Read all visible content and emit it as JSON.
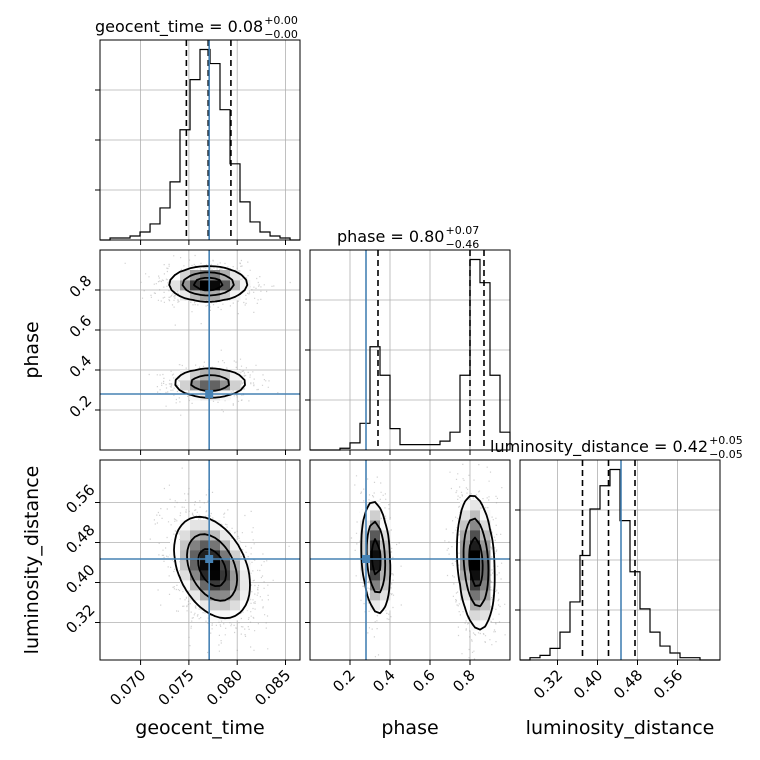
{
  "chart_data": {
    "type": "corner",
    "parameters": [
      "geocent_time",
      "phase",
      "luminosity_distance"
    ],
    "axis_labels": {
      "geocent_time": "geocent_time",
      "phase": "phase",
      "luminosity_distance": "luminosity_distance"
    },
    "ranges": {
      "geocent_time": [
        0.0658,
        0.0865
      ],
      "phase": [
        0.0,
        1.0
      ],
      "luminosity_distance": [
        0.245,
        0.645
      ]
    },
    "ticks": {
      "geocent_time": {
        "values": [
          0.07,
          0.075,
          0.08,
          0.085
        ],
        "labels": [
          "0.070",
          "0.075",
          "0.080",
          "0.085"
        ]
      },
      "phase": {
        "values": [
          0.2,
          0.4,
          0.6,
          0.8
        ],
        "labels": [
          "0.2",
          "0.4",
          "0.6",
          "0.8"
        ]
      },
      "luminosity_distance": {
        "values": [
          0.32,
          0.4,
          0.48,
          0.56
        ],
        "labels": [
          "0.32",
          "0.40",
          "0.48",
          "0.56"
        ]
      }
    },
    "injection": {
      "geocent_time": 0.0771,
      "phase": 0.28,
      "luminosity_distance": 0.447
    },
    "injection_color": "#4682b4",
    "grid": true,
    "titles": [
      {
        "param": "geocent_time",
        "prefix": "geocent_time = 0.08",
        "plus": "+0.00",
        "minus": "−0.00"
      },
      {
        "param": "phase",
        "prefix": "phase = 0.80",
        "plus": "+0.07",
        "minus": "−0.46"
      },
      {
        "param": "luminosity_distance",
        "prefix": "luminosity_distance = 0.42",
        "plus": "+0.05",
        "minus": "−0.05"
      }
    ],
    "histograms": {
      "geocent_time": {
        "quantiles": [
          0.07474,
          0.077,
          0.07935
        ],
        "edges": [
          0.0658,
          0.06684,
          0.06787,
          0.06891,
          0.06994,
          0.07098,
          0.07201,
          0.07305,
          0.07408,
          0.07512,
          0.07615,
          0.07719,
          0.07822,
          0.07926,
          0.08029,
          0.08133,
          0.08236,
          0.0834,
          0.08443,
          0.08547,
          0.0865
        ],
        "counts": [
          0,
          1,
          1,
          2,
          4,
          8,
          16,
          29,
          55,
          80,
          95,
          88,
          65,
          38,
          19,
          9,
          4,
          2,
          1,
          0
        ]
      },
      "phase": {
        "quantiles": [
          0.34,
          0.8,
          0.87
        ],
        "edges": [
          0.0,
          0.05,
          0.1,
          0.15,
          0.2,
          0.25,
          0.3,
          0.35,
          0.4,
          0.45,
          0.5,
          0.55,
          0.6,
          0.65,
          0.7,
          0.75,
          0.8,
          0.85,
          0.9,
          0.95,
          1.0
        ],
        "counts": [
          0,
          0,
          0,
          1,
          4,
          15,
          58,
          42,
          12,
          3,
          3,
          3,
          3,
          5,
          10,
          42,
          107,
          94,
          42,
          10
        ]
      },
      "luminosity_distance": {
        "quantiles": [
          0.37,
          0.422,
          0.475
        ],
        "edges": [
          0.245,
          0.265,
          0.285,
          0.305,
          0.325,
          0.345,
          0.365,
          0.385,
          0.405,
          0.425,
          0.445,
          0.465,
          0.485,
          0.505,
          0.525,
          0.545,
          0.565,
          0.585,
          0.605,
          0.625,
          0.645
        ],
        "counts": [
          0,
          1,
          2,
          5,
          12,
          25,
          45,
          65,
          75,
          82,
          60,
          38,
          22,
          12,
          6,
          3,
          1,
          1,
          0,
          0
        ]
      }
    },
    "panels_2d": [
      {
        "x": "geocent_time",
        "y": "phase",
        "modes": [
          {
            "cx": 0.077,
            "cy": 0.83,
            "sx": 0.00195,
            "sy": 0.042,
            "w": 0.62,
            "rho": 0
          },
          {
            "cx": 0.0772,
            "cy": 0.335,
            "sx": 0.00195,
            "sy": 0.038,
            "w": 0.38,
            "rho": 0
          }
        ]
      },
      {
        "x": "geocent_time",
        "y": "luminosity_distance",
        "modes": [
          {
            "cx": 0.0774,
            "cy": 0.43,
            "sx": 0.0019,
            "sy": 0.049,
            "w": 1.0,
            "rho": -0.35
          }
        ]
      },
      {
        "x": "phase",
        "y": "luminosity_distance",
        "modes": [
          {
            "cx": 0.33,
            "cy": 0.45,
            "sx": 0.035,
            "sy": 0.055,
            "w": 0.38,
            "rho": -0.2
          },
          {
            "cx": 0.83,
            "cy": 0.44,
            "sx": 0.045,
            "sy": 0.065,
            "w": 0.62,
            "rho": -0.2
          }
        ]
      }
    ]
  }
}
